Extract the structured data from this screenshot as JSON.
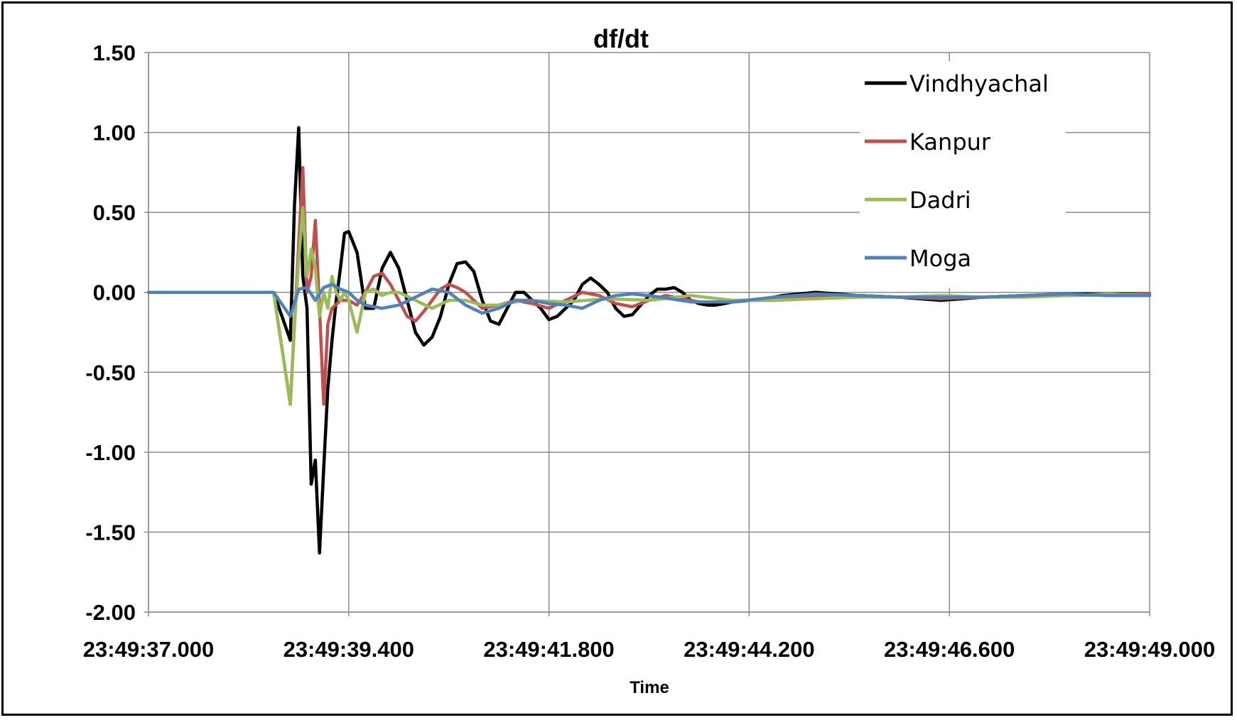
{
  "chart_data": {
    "type": "line",
    "title": "df/dt",
    "xlabel": "Time",
    "ylabel": "",
    "ylim": [
      -2.0,
      1.5
    ],
    "yticks": [
      "1.50",
      "1.00",
      "0.50",
      "0.00",
      "-0.50",
      "-1.00",
      "-1.50",
      "-2.00"
    ],
    "xlim_seconds": [
      0,
      12
    ],
    "xticks": [
      "23:49:37.000",
      "23:49:39.400",
      "23:49:41.800",
      "23:49:44.200",
      "23:49:46.600",
      "23:49:49.000"
    ],
    "grid": true,
    "legend_position": "top-right",
    "x_note": "x values are seconds after 23:49:37.000",
    "series": [
      {
        "name": "Vindhyachal",
        "color": "#000000",
        "x": [
          0,
          1.5,
          1.7,
          1.75,
          1.8,
          1.85,
          1.9,
          1.95,
          2.0,
          2.05,
          2.1,
          2.15,
          2.2,
          2.25,
          2.3,
          2.35,
          2.4,
          2.5,
          2.6,
          2.7,
          2.8,
          2.9,
          3.0,
          3.1,
          3.2,
          3.3,
          3.4,
          3.5,
          3.6,
          3.7,
          3.8,
          3.9,
          4.0,
          4.1,
          4.2,
          4.3,
          4.4,
          4.5,
          4.6,
          4.7,
          4.8,
          4.9,
          5.0,
          5.1,
          5.2,
          5.3,
          5.4,
          5.5,
          5.6,
          5.7,
          5.8,
          5.9,
          6.0,
          6.1,
          6.2,
          6.3,
          6.4,
          6.5,
          6.6,
          6.7,
          6.8,
          6.9,
          7.0,
          7.2,
          7.4,
          7.6,
          7.8,
          8.0,
          8.5,
          9.0,
          9.5,
          10.0,
          10.5,
          11.0,
          11.5,
          12.0
        ],
        "values": [
          0.0,
          0.0,
          -0.3,
          0.55,
          1.03,
          0.1,
          -0.1,
          -1.2,
          -1.05,
          -1.63,
          -1.1,
          -0.6,
          -0.3,
          -0.05,
          0.15,
          0.37,
          0.38,
          0.25,
          -0.1,
          -0.1,
          0.15,
          0.25,
          0.15,
          -0.05,
          -0.25,
          -0.33,
          -0.28,
          -0.15,
          0.05,
          0.18,
          0.19,
          0.13,
          -0.05,
          -0.18,
          -0.2,
          -0.1,
          0.0,
          0.0,
          -0.05,
          -0.1,
          -0.17,
          -0.15,
          -0.1,
          -0.05,
          0.05,
          0.09,
          0.05,
          0.0,
          -0.1,
          -0.15,
          -0.14,
          -0.08,
          -0.02,
          0.02,
          0.02,
          0.03,
          0.0,
          -0.05,
          -0.07,
          -0.08,
          -0.08,
          -0.07,
          -0.06,
          -0.05,
          -0.04,
          -0.02,
          -0.01,
          0.0,
          -0.02,
          -0.03,
          -0.05,
          -0.03,
          -0.02,
          -0.01,
          -0.01,
          -0.01
        ]
      },
      {
        "name": "Kanpur",
        "color": "#c0504d",
        "x": [
          0,
          1.5,
          1.7,
          1.8,
          1.85,
          1.9,
          1.95,
          2.0,
          2.05,
          2.1,
          2.15,
          2.2,
          2.3,
          2.4,
          2.5,
          2.6,
          2.7,
          2.8,
          2.9,
          3.0,
          3.1,
          3.2,
          3.3,
          3.4,
          3.5,
          3.6,
          3.7,
          3.8,
          3.9,
          4.0,
          4.2,
          4.4,
          4.6,
          4.8,
          5.0,
          5.2,
          5.4,
          5.6,
          5.8,
          6.0,
          6.2,
          6.4,
          6.6,
          6.8,
          7.0,
          7.5,
          8.0,
          8.5,
          9.0,
          9.5,
          10.0,
          10.5,
          11.0,
          12.0
        ],
        "values": [
          0.0,
          0.0,
          -0.7,
          0.3,
          0.78,
          0.0,
          0.1,
          0.45,
          -0.1,
          -0.7,
          -0.2,
          -0.1,
          -0.05,
          -0.05,
          -0.08,
          0.0,
          0.1,
          0.12,
          0.05,
          -0.05,
          -0.15,
          -0.18,
          -0.12,
          -0.05,
          0.02,
          0.05,
          0.03,
          0.0,
          -0.05,
          -0.1,
          -0.08,
          -0.05,
          -0.07,
          -0.1,
          -0.05,
          0.0,
          -0.02,
          -0.07,
          -0.09,
          -0.05,
          -0.02,
          -0.04,
          -0.06,
          -0.06,
          -0.05,
          -0.05,
          -0.03,
          -0.02,
          -0.03,
          -0.04,
          -0.03,
          -0.02,
          -0.02,
          -0.01
        ]
      },
      {
        "name": "Dadri",
        "color": "#9bbb59",
        "x": [
          0,
          1.5,
          1.7,
          1.75,
          1.8,
          1.85,
          1.9,
          1.95,
          2.0,
          2.05,
          2.1,
          2.15,
          2.2,
          2.25,
          2.3,
          2.35,
          2.4,
          2.5,
          2.6,
          2.7,
          2.8,
          2.9,
          3.0,
          3.2,
          3.4,
          3.6,
          3.8,
          4.0,
          4.2,
          4.5,
          5.0,
          5.5,
          6.0,
          6.5,
          7.0,
          7.5,
          8.0,
          8.5,
          9.0,
          9.5,
          10.0,
          10.5,
          11.0,
          11.5,
          12.0
        ],
        "values": [
          0.0,
          0.0,
          -0.7,
          -0.2,
          0.2,
          0.53,
          0.1,
          0.27,
          0.15,
          -0.15,
          0.0,
          -0.1,
          0.1,
          0.0,
          -0.05,
          0.0,
          -0.05,
          -0.25,
          0.0,
          0.02,
          -0.02,
          0.0,
          0.0,
          -0.05,
          -0.1,
          -0.05,
          -0.05,
          -0.08,
          -0.08,
          -0.05,
          -0.06,
          -0.04,
          -0.05,
          -0.02,
          -0.05,
          -0.05,
          -0.04,
          -0.03,
          -0.03,
          -0.02,
          -0.03,
          -0.03,
          -0.02,
          -0.01,
          -0.02
        ]
      },
      {
        "name": "Moga",
        "color": "#4f81bd",
        "x": [
          0,
          1.5,
          1.7,
          1.8,
          1.9,
          2.0,
          2.1,
          2.2,
          2.3,
          2.4,
          2.5,
          2.6,
          2.8,
          3.0,
          3.2,
          3.4,
          3.6,
          3.8,
          4.0,
          4.2,
          4.4,
          4.6,
          4.8,
          5.0,
          5.2,
          5.4,
          5.6,
          5.8,
          6.0,
          6.5,
          7.0,
          7.5,
          8.0,
          8.5,
          9.0,
          9.5,
          10.0,
          10.5,
          11.0,
          11.5,
          12.0
        ],
        "values": [
          0.0,
          0.0,
          -0.15,
          0.02,
          0.03,
          -0.05,
          0.03,
          0.05,
          0.02,
          0.0,
          -0.05,
          -0.08,
          -0.1,
          -0.08,
          -0.03,
          0.02,
          0.0,
          -0.08,
          -0.13,
          -0.1,
          -0.05,
          -0.05,
          -0.07,
          -0.08,
          -0.1,
          -0.05,
          -0.02,
          -0.01,
          -0.02,
          -0.06,
          -0.06,
          -0.03,
          -0.01,
          -0.02,
          -0.03,
          -0.03,
          -0.03,
          -0.02,
          -0.01,
          -0.02,
          -0.02
        ]
      }
    ]
  }
}
